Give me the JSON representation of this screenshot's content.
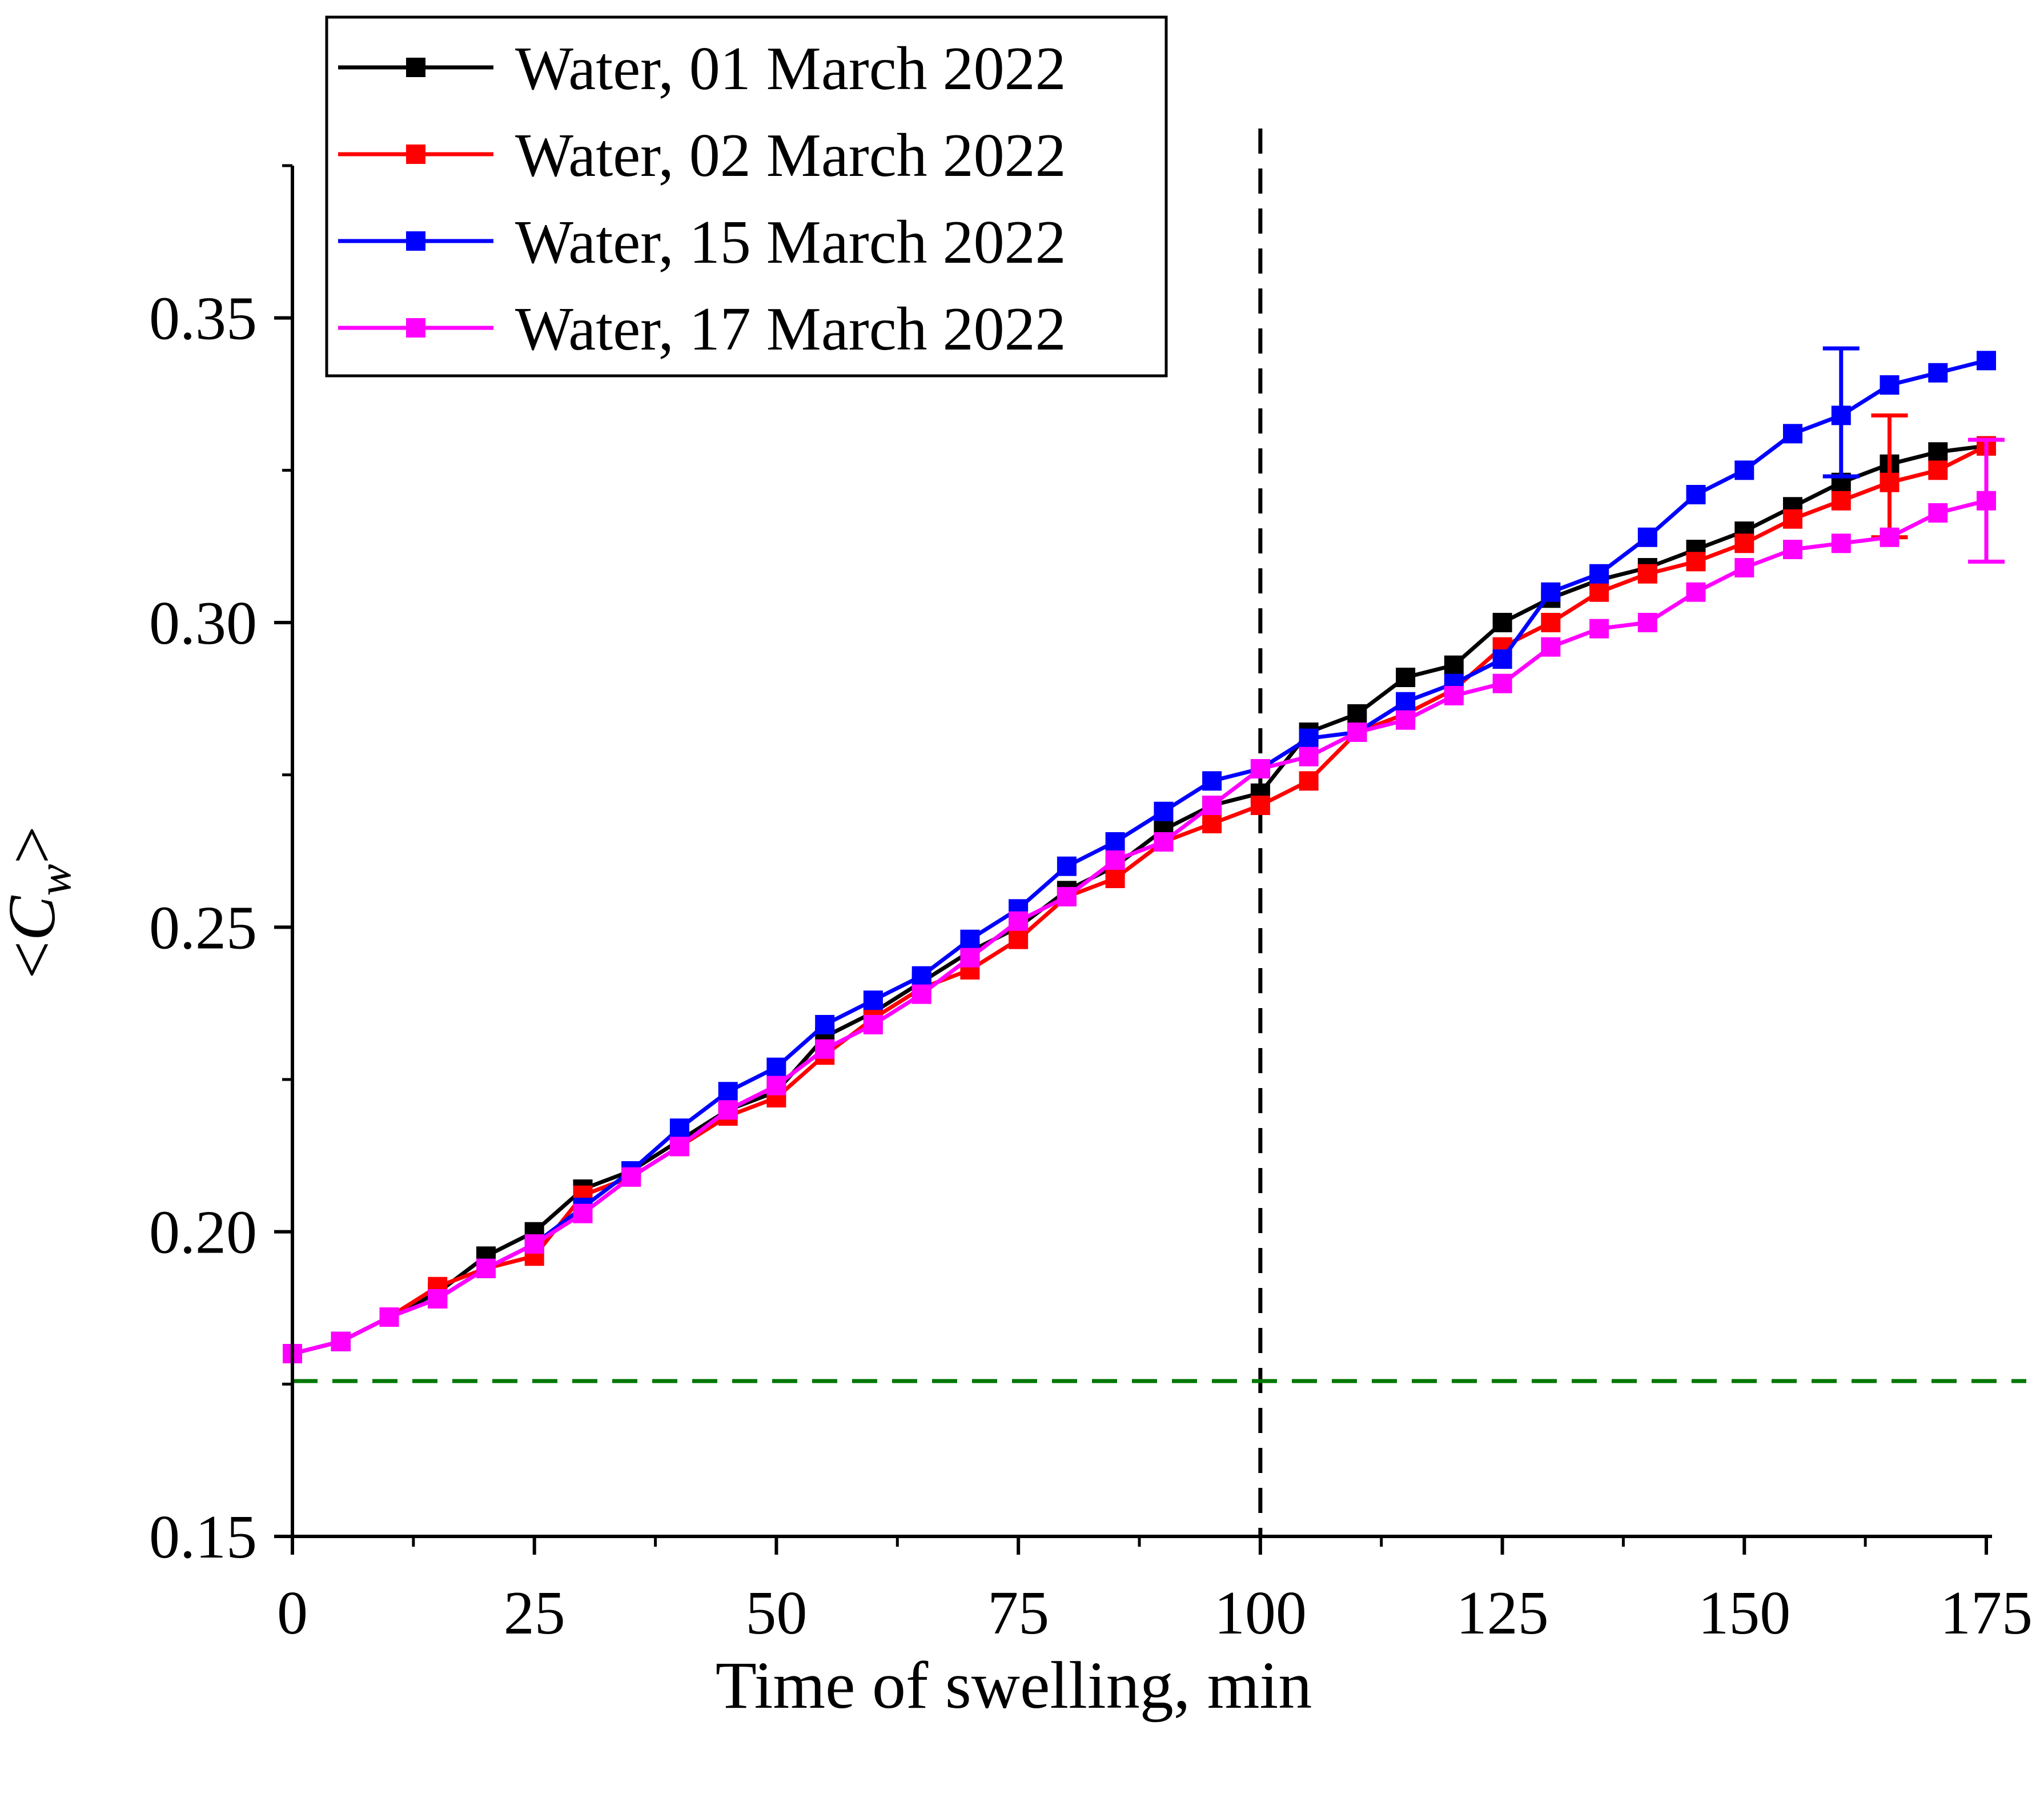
{
  "chart_data": {
    "type": "line",
    "title": "",
    "xlabel": "Time of swelling, min",
    "ylabel": "<C_w>",
    "ylabel_parts": {
      "open": "<",
      "symbol": "C",
      "subscript": "w",
      "close": ">"
    },
    "xlim": [
      0,
      175
    ],
    "ylim": [
      0.15,
      0.375
    ],
    "x_ticks": [
      0,
      25,
      50,
      75,
      100,
      125,
      150,
      175
    ],
    "x_tick_labels": [
      "0",
      "25",
      "50",
      "75",
      "100",
      "125",
      "150",
      "175"
    ],
    "y_ticks": [
      0.15,
      0.2,
      0.25,
      0.3,
      0.35
    ],
    "y_tick_labels": [
      "0.15",
      "0.20",
      "0.25",
      "0.30",
      "0.35"
    ],
    "grid": false,
    "legend_position": "top-left",
    "x": [
      0,
      5,
      10,
      15,
      20,
      25,
      30,
      35,
      40,
      45,
      50,
      55,
      60,
      65,
      70,
      75,
      80,
      85,
      90,
      95,
      100,
      105,
      110,
      115,
      120,
      125,
      130,
      135,
      140,
      145,
      150,
      155,
      160,
      165,
      170,
      175
    ],
    "series": [
      {
        "name": "Water, 01 March 2022",
        "color": "#000000",
        "values": [
          0.18,
          0.182,
          0.186,
          0.19,
          0.196,
          0.2,
          0.207,
          0.21,
          0.215,
          0.22,
          0.223,
          0.232,
          0.236,
          0.241,
          0.246,
          0.25,
          0.256,
          0.26,
          0.266,
          0.27,
          0.272,
          0.282,
          0.285,
          0.291,
          0.293,
          0.3,
          0.304,
          0.307,
          0.309,
          0.312,
          0.315,
          0.319,
          0.323,
          0.326,
          0.328,
          0.329
        ],
        "error_bar": null
      },
      {
        "name": "Water, 02 March 2022",
        "color": "#ff0000",
        "values": [
          0.18,
          0.182,
          0.186,
          0.191,
          0.194,
          0.196,
          0.206,
          0.209,
          0.214,
          0.219,
          0.222,
          0.229,
          0.235,
          0.24,
          0.243,
          0.248,
          0.255,
          0.258,
          0.264,
          0.267,
          0.27,
          0.274,
          0.282,
          0.285,
          0.289,
          0.296,
          0.3,
          0.305,
          0.308,
          0.31,
          0.313,
          0.317,
          0.32,
          0.323,
          0.325,
          0.329
        ],
        "error_bar": {
          "x": 165,
          "low": 0.314,
          "high": 0.334
        }
      },
      {
        "name": "Water, 15 March 2022",
        "color": "#0000ff",
        "values": [
          0.18,
          0.182,
          0.186,
          0.189,
          0.194,
          0.198,
          0.204,
          0.21,
          0.217,
          0.223,
          0.227,
          0.234,
          0.238,
          0.242,
          0.248,
          0.253,
          0.26,
          0.264,
          0.269,
          0.274,
          0.276,
          0.281,
          0.282,
          0.287,
          0.29,
          0.294,
          0.305,
          0.308,
          0.314,
          0.321,
          0.325,
          0.331,
          0.334,
          0.339,
          0.341,
          0.343
        ],
        "error_bar": {
          "x": 160,
          "low": 0.324,
          "high": 0.345
        }
      },
      {
        "name": "Water, 17 March 2022",
        "color": "#ff00ff",
        "values": [
          0.18,
          0.182,
          0.186,
          0.189,
          0.194,
          0.198,
          0.203,
          0.209,
          0.214,
          0.22,
          0.224,
          0.23,
          0.234,
          0.239,
          0.245,
          0.251,
          0.255,
          0.261,
          0.264,
          0.27,
          0.276,
          0.278,
          0.282,
          0.284,
          0.288,
          0.29,
          0.296,
          0.299,
          0.3,
          0.305,
          0.309,
          0.312,
          0.313,
          0.314,
          0.318,
          0.32
        ],
        "error_bar": {
          "x": 175,
          "low": 0.31,
          "high": 0.33
        }
      }
    ],
    "reference_lines": [
      {
        "orientation": "vertical",
        "value": 100,
        "color": "#000000",
        "style": "dashed"
      },
      {
        "orientation": "horizontal",
        "value": 0.1755,
        "color": "#007700",
        "style": "dashed"
      }
    ]
  }
}
